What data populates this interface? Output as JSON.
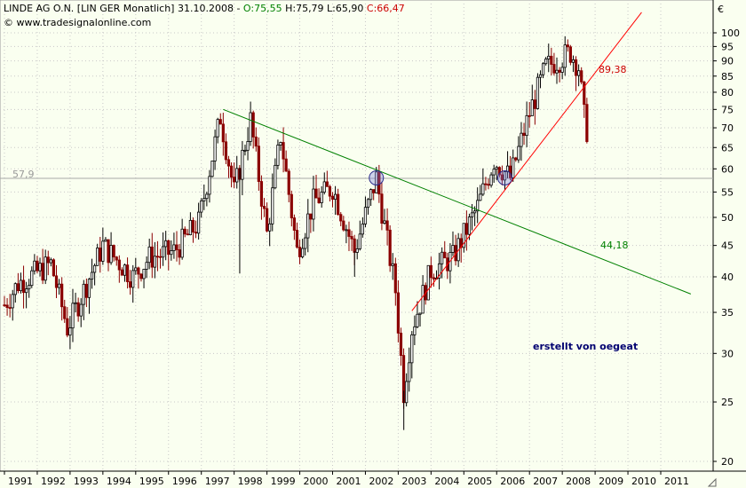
{
  "header": {
    "title_prefix": "LINDE AG O.N. [LIN GER  Monatlich] 31.10.2008 - ",
    "open_label": "O:75,55",
    "hl_label": " H:75,79 L:65,90 ",
    "close_label": "C:66,47",
    "source": "© www.tradesignalonline.com",
    "currency": "€"
  },
  "credit": "erstellt von oegeat",
  "colors": {
    "background": "#fafff0",
    "grid": "#c8c8c8",
    "candle_up": "#000000",
    "candle_down": "#8b0000",
    "downtrend": "#008000",
    "uptrend": "#ff0000",
    "support": "#a8a8a8",
    "marker": "#2a2a8a"
  },
  "chart_data": {
    "type": "candlestick",
    "scale": "log",
    "ylim": [
      20,
      105
    ],
    "y_ticks": [
      20,
      25,
      30,
      35,
      40,
      45,
      50,
      55,
      60,
      65,
      70,
      75,
      80,
      85,
      90,
      95,
      100
    ],
    "x_ticks": [
      "1991",
      "1992",
      "1993",
      "1994",
      "1995",
      "1996",
      "1997",
      "1998",
      "1999",
      "2000",
      "2001",
      "2002",
      "2003",
      "2004",
      "2005",
      "2006",
      "2007",
      "2008",
      "2009",
      "2010",
      "2011"
    ],
    "key_points": [
      {
        "date": "1991-01",
        "price": 36
      },
      {
        "date": "1991-06",
        "price": 39
      },
      {
        "date": "1992-06",
        "price": 42
      },
      {
        "date": "1992-12",
        "price": 33
      },
      {
        "date": "1993-06",
        "price": 38
      },
      {
        "date": "1994-01",
        "price": 45
      },
      {
        "date": "1994-12",
        "price": 40
      },
      {
        "date": "1995-06",
        "price": 43
      },
      {
        "date": "1996-03",
        "price": 44
      },
      {
        "date": "1996-12",
        "price": 49
      },
      {
        "date": "1997-08",
        "price": 73
      },
      {
        "date": "1998-01",
        "price": 55
      },
      {
        "date": "1998-07",
        "price": 72
      },
      {
        "date": "1999-01",
        "price": 47
      },
      {
        "date": "1999-06",
        "price": 68
      },
      {
        "date": "1999-12",
        "price": 44
      },
      {
        "date": "2000-06",
        "price": 53
      },
      {
        "date": "2001-01",
        "price": 56
      },
      {
        "date": "2001-09",
        "price": 44
      },
      {
        "date": "2002-05",
        "price": 58
      },
      {
        "date": "2002-12",
        "price": 38
      },
      {
        "date": "2003-03",
        "price": 26
      },
      {
        "date": "2003-06",
        "price": 33
      },
      {
        "date": "2004-01",
        "price": 41
      },
      {
        "date": "2004-09",
        "price": 43
      },
      {
        "date": "2005-06",
        "price": 52
      },
      {
        "date": "2005-12",
        "price": 62
      },
      {
        "date": "2006-06",
        "price": 58
      },
      {
        "date": "2007-01",
        "price": 74
      },
      {
        "date": "2007-07",
        "price": 88
      },
      {
        "date": "2008-04",
        "price": 93
      },
      {
        "date": "2008-07",
        "price": 88
      },
      {
        "date": "2008-10",
        "price": 66.47
      }
    ],
    "lines": [
      {
        "type": "downtrend",
        "from": {
          "date": "1997-09",
          "price": 75
        },
        "to": {
          "date": "2011-12",
          "price": 37.5
        },
        "label": "44,18"
      },
      {
        "type": "uptrend",
        "from": {
          "date": "2003-06",
          "price": 35.2
        },
        "to": {
          "date": "2010-06",
          "price": 108
        },
        "label": "89,38"
      },
      {
        "type": "support",
        "price": 57.9,
        "label": "57,9"
      }
    ],
    "markers": [
      {
        "date": "2002-05",
        "price": 58
      },
      {
        "date": "2006-04",
        "price": 58
      }
    ]
  }
}
